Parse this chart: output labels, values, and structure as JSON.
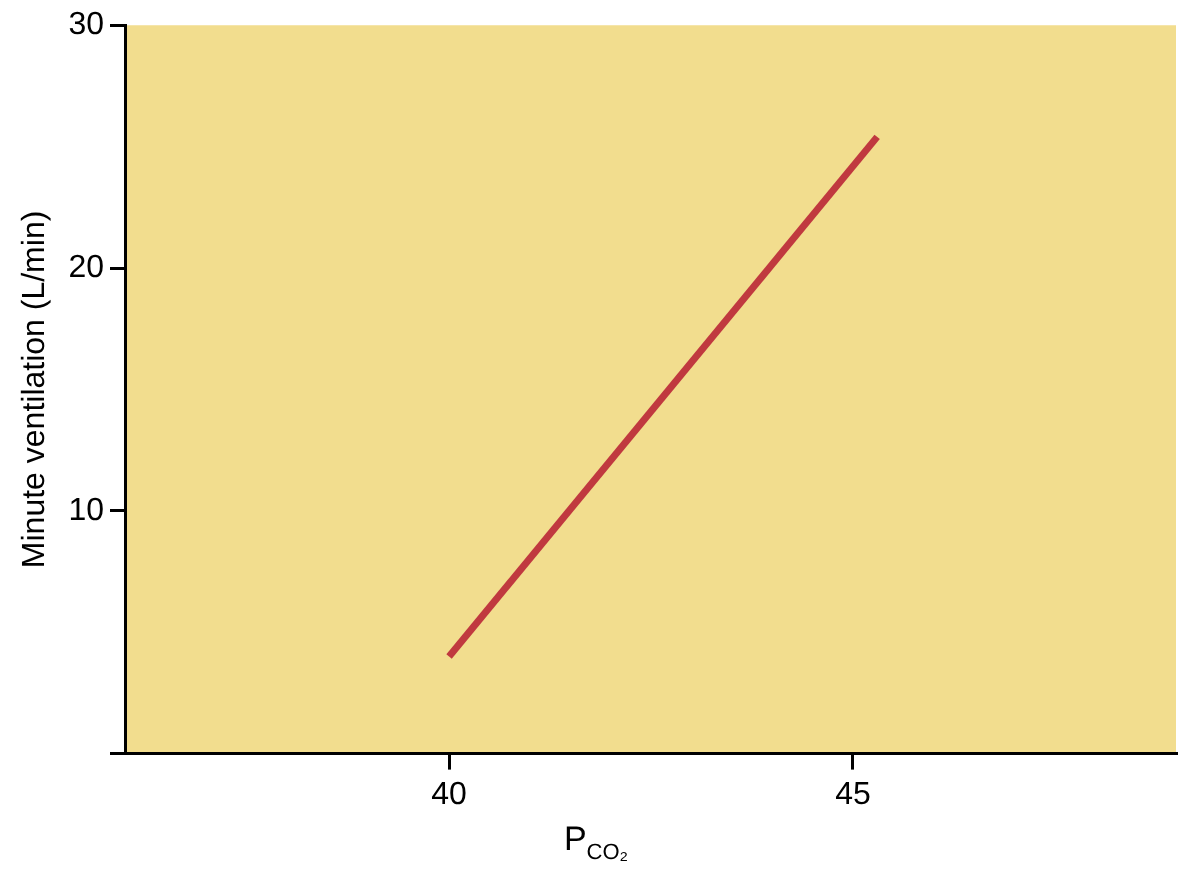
{
  "chart_data": {
    "type": "line",
    "xlabel": "P$_{CO₂}$",
    "ylabel": "Minute ventilation (L/min)",
    "x": [
      40,
      45.3
    ],
    "series": [
      {
        "color": "#c0393f",
        "values": [
          4,
          25.4
        ]
      }
    ],
    "xlim": [
      36,
      49
    ],
    "xticks": [
      40,
      45
    ],
    "ylim": [
      0,
      30
    ],
    "yticks": [
      {
        "value": 0,
        "label": null
      },
      10,
      20,
      30
    ],
    "grid": false,
    "legend": false,
    "marker": "none",
    "line_style": "solid"
  }
}
